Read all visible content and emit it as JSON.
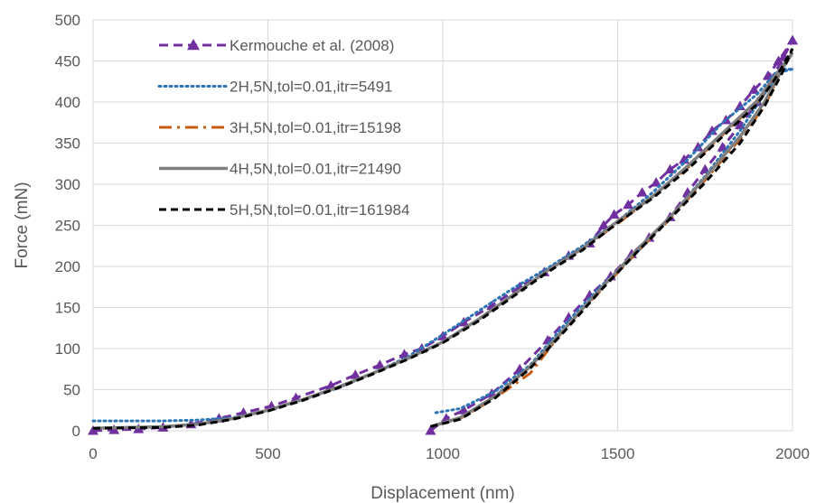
{
  "chart_data": {
    "type": "line",
    "xlabel": "Displacement (nm)",
    "ylabel": "Force (mN)",
    "xlim": [
      0,
      2000
    ],
    "ylim": [
      0,
      500
    ],
    "xticks": [
      "0",
      "500",
      "1000",
      "1500",
      "2000"
    ],
    "yticks": [
      "0",
      "50",
      "100",
      "150",
      "200",
      "250",
      "300",
      "350",
      "400",
      "450",
      "500"
    ],
    "grid": "vertical and horizontal major gridlines",
    "legend_position": "inside top-left",
    "series": [
      {
        "name": "Kermouche et al. (2008)",
        "color": "#7030A0",
        "style": "dashed-with-triangle-markers",
        "loading": [
          [
            0,
            0
          ],
          [
            60,
            1
          ],
          [
            130,
            2
          ],
          [
            200,
            4
          ],
          [
            280,
            8
          ],
          [
            360,
            15
          ],
          [
            430,
            22
          ],
          [
            510,
            30
          ],
          [
            580,
            40
          ],
          [
            680,
            55
          ],
          [
            750,
            68
          ],
          [
            820,
            80
          ],
          [
            890,
            93
          ],
          [
            940,
            100
          ],
          [
            1000,
            115
          ],
          [
            1060,
            132
          ],
          [
            1140,
            152
          ],
          [
            1220,
            175
          ],
          [
            1290,
            193
          ],
          [
            1360,
            213
          ],
          [
            1420,
            228
          ],
          [
            1460,
            250
          ],
          [
            1490,
            263
          ],
          [
            1530,
            275
          ],
          [
            1570,
            290
          ],
          [
            1610,
            302
          ],
          [
            1650,
            318
          ],
          [
            1690,
            330
          ],
          [
            1730,
            345
          ],
          [
            1770,
            365
          ],
          [
            1810,
            378
          ],
          [
            1850,
            395
          ],
          [
            1890,
            415
          ],
          [
            1930,
            432
          ],
          [
            1960,
            450
          ],
          [
            2000,
            475
          ]
        ],
        "unloading": [
          [
            965,
            0
          ],
          [
            1010,
            15
          ],
          [
            1060,
            25
          ],
          [
            1140,
            45
          ],
          [
            1220,
            75
          ],
          [
            1300,
            110
          ],
          [
            1360,
            138
          ],
          [
            1420,
            165
          ],
          [
            1480,
            188
          ],
          [
            1540,
            215
          ],
          [
            1590,
            235
          ],
          [
            1650,
            260
          ],
          [
            1700,
            290
          ],
          [
            1750,
            318
          ],
          [
            1800,
            345
          ],
          [
            1850,
            372
          ],
          [
            1900,
            400
          ],
          [
            1940,
            428
          ],
          [
            1975,
            455
          ],
          [
            2000,
            475
          ]
        ]
      },
      {
        "name": "2H,5N,tol=0.01,itr=5491",
        "color": "#2E75B6",
        "style": "dotted",
        "loading": [
          [
            0,
            12
          ],
          [
            200,
            12
          ],
          [
            300,
            13
          ],
          [
            400,
            16
          ],
          [
            500,
            25
          ],
          [
            600,
            38
          ],
          [
            700,
            52
          ],
          [
            800,
            70
          ],
          [
            900,
            90
          ],
          [
            1000,
            117
          ],
          [
            1100,
            145
          ],
          [
            1200,
            173
          ],
          [
            1300,
            198
          ],
          [
            1400,
            225
          ],
          [
            1500,
            255
          ],
          [
            1600,
            290
          ],
          [
            1700,
            330
          ],
          [
            1800,
            375
          ],
          [
            1900,
            410
          ],
          [
            1950,
            435
          ],
          [
            2000,
            440
          ]
        ],
        "unloading": [
          [
            980,
            22
          ],
          [
            1050,
            27
          ],
          [
            1150,
            48
          ],
          [
            1250,
            80
          ],
          [
            1350,
            130
          ],
          [
            1450,
            175
          ],
          [
            1550,
            215
          ],
          [
            1650,
            260
          ],
          [
            1750,
            310
          ],
          [
            1850,
            365
          ],
          [
            1920,
            410
          ],
          [
            1970,
            440
          ],
          [
            2000,
            440
          ]
        ]
      },
      {
        "name": "3H,5N,tol=0.01,itr=15198",
        "color": "#C55A11",
        "style": "dash-dot",
        "loading": [
          [
            0,
            3
          ],
          [
            200,
            5
          ],
          [
            300,
            8
          ],
          [
            400,
            15
          ],
          [
            500,
            25
          ],
          [
            600,
            38
          ],
          [
            700,
            53
          ],
          [
            800,
            70
          ],
          [
            900,
            88
          ],
          [
            1000,
            108
          ],
          [
            1100,
            135
          ],
          [
            1200,
            165
          ],
          [
            1300,
            195
          ],
          [
            1400,
            222
          ],
          [
            1500,
            252
          ],
          [
            1600,
            285
          ],
          [
            1700,
            320
          ],
          [
            1800,
            360
          ],
          [
            1900,
            400
          ],
          [
            1950,
            430
          ],
          [
            2000,
            460
          ]
        ],
        "unloading": [
          [
            965,
            5
          ],
          [
            1050,
            15
          ],
          [
            1150,
            40
          ],
          [
            1250,
            70
          ],
          [
            1350,
            125
          ],
          [
            1450,
            170
          ],
          [
            1550,
            215
          ],
          [
            1650,
            258
          ],
          [
            1750,
            305
          ],
          [
            1850,
            355
          ],
          [
            1920,
            395
          ],
          [
            1970,
            440
          ],
          [
            2000,
            460
          ]
        ]
      },
      {
        "name": "4H,5N,tol=0.01,itr=21490",
        "color": "#7F7F7F",
        "style": "solid",
        "loading": [
          [
            0,
            3
          ],
          [
            200,
            5
          ],
          [
            300,
            8
          ],
          [
            400,
            15
          ],
          [
            500,
            25
          ],
          [
            600,
            38
          ],
          [
            700,
            53
          ],
          [
            800,
            70
          ],
          [
            900,
            88
          ],
          [
            1000,
            108
          ],
          [
            1100,
            135
          ],
          [
            1200,
            165
          ],
          [
            1300,
            195
          ],
          [
            1400,
            222
          ],
          [
            1500,
            255
          ],
          [
            1600,
            285
          ],
          [
            1700,
            322
          ],
          [
            1800,
            362
          ],
          [
            1900,
            402
          ],
          [
            1950,
            432
          ],
          [
            2000,
            460
          ]
        ],
        "unloading": [
          [
            965,
            5
          ],
          [
            1050,
            16
          ],
          [
            1150,
            42
          ],
          [
            1250,
            78
          ],
          [
            1350,
            125
          ],
          [
            1450,
            172
          ],
          [
            1550,
            218
          ],
          [
            1650,
            260
          ],
          [
            1750,
            308
          ],
          [
            1850,
            358
          ],
          [
            1920,
            400
          ],
          [
            1970,
            440
          ],
          [
            2000,
            460
          ]
        ]
      },
      {
        "name": "5H,5N,tol=0.01,itr=161984",
        "color": "#000000",
        "style": "dashed",
        "loading": [
          [
            0,
            3
          ],
          [
            200,
            4
          ],
          [
            300,
            7
          ],
          [
            400,
            14
          ],
          [
            500,
            24
          ],
          [
            600,
            37
          ],
          [
            700,
            52
          ],
          [
            800,
            69
          ],
          [
            900,
            87
          ],
          [
            1000,
            107
          ],
          [
            1100,
            133
          ],
          [
            1200,
            163
          ],
          [
            1300,
            193
          ],
          [
            1400,
            220
          ],
          [
            1500,
            253
          ],
          [
            1600,
            283
          ],
          [
            1700,
            318
          ],
          [
            1800,
            358
          ],
          [
            1900,
            398
          ],
          [
            1950,
            428
          ],
          [
            2000,
            465
          ]
        ],
        "unloading": [
          [
            965,
            5
          ],
          [
            1050,
            14
          ],
          [
            1150,
            40
          ],
          [
            1250,
            76
          ],
          [
            1350,
            122
          ],
          [
            1450,
            170
          ],
          [
            1550,
            215
          ],
          [
            1650,
            258
          ],
          [
            1750,
            302
          ],
          [
            1850,
            350
          ],
          [
            1920,
            395
          ],
          [
            1970,
            435
          ],
          [
            2000,
            465
          ]
        ]
      }
    ]
  }
}
